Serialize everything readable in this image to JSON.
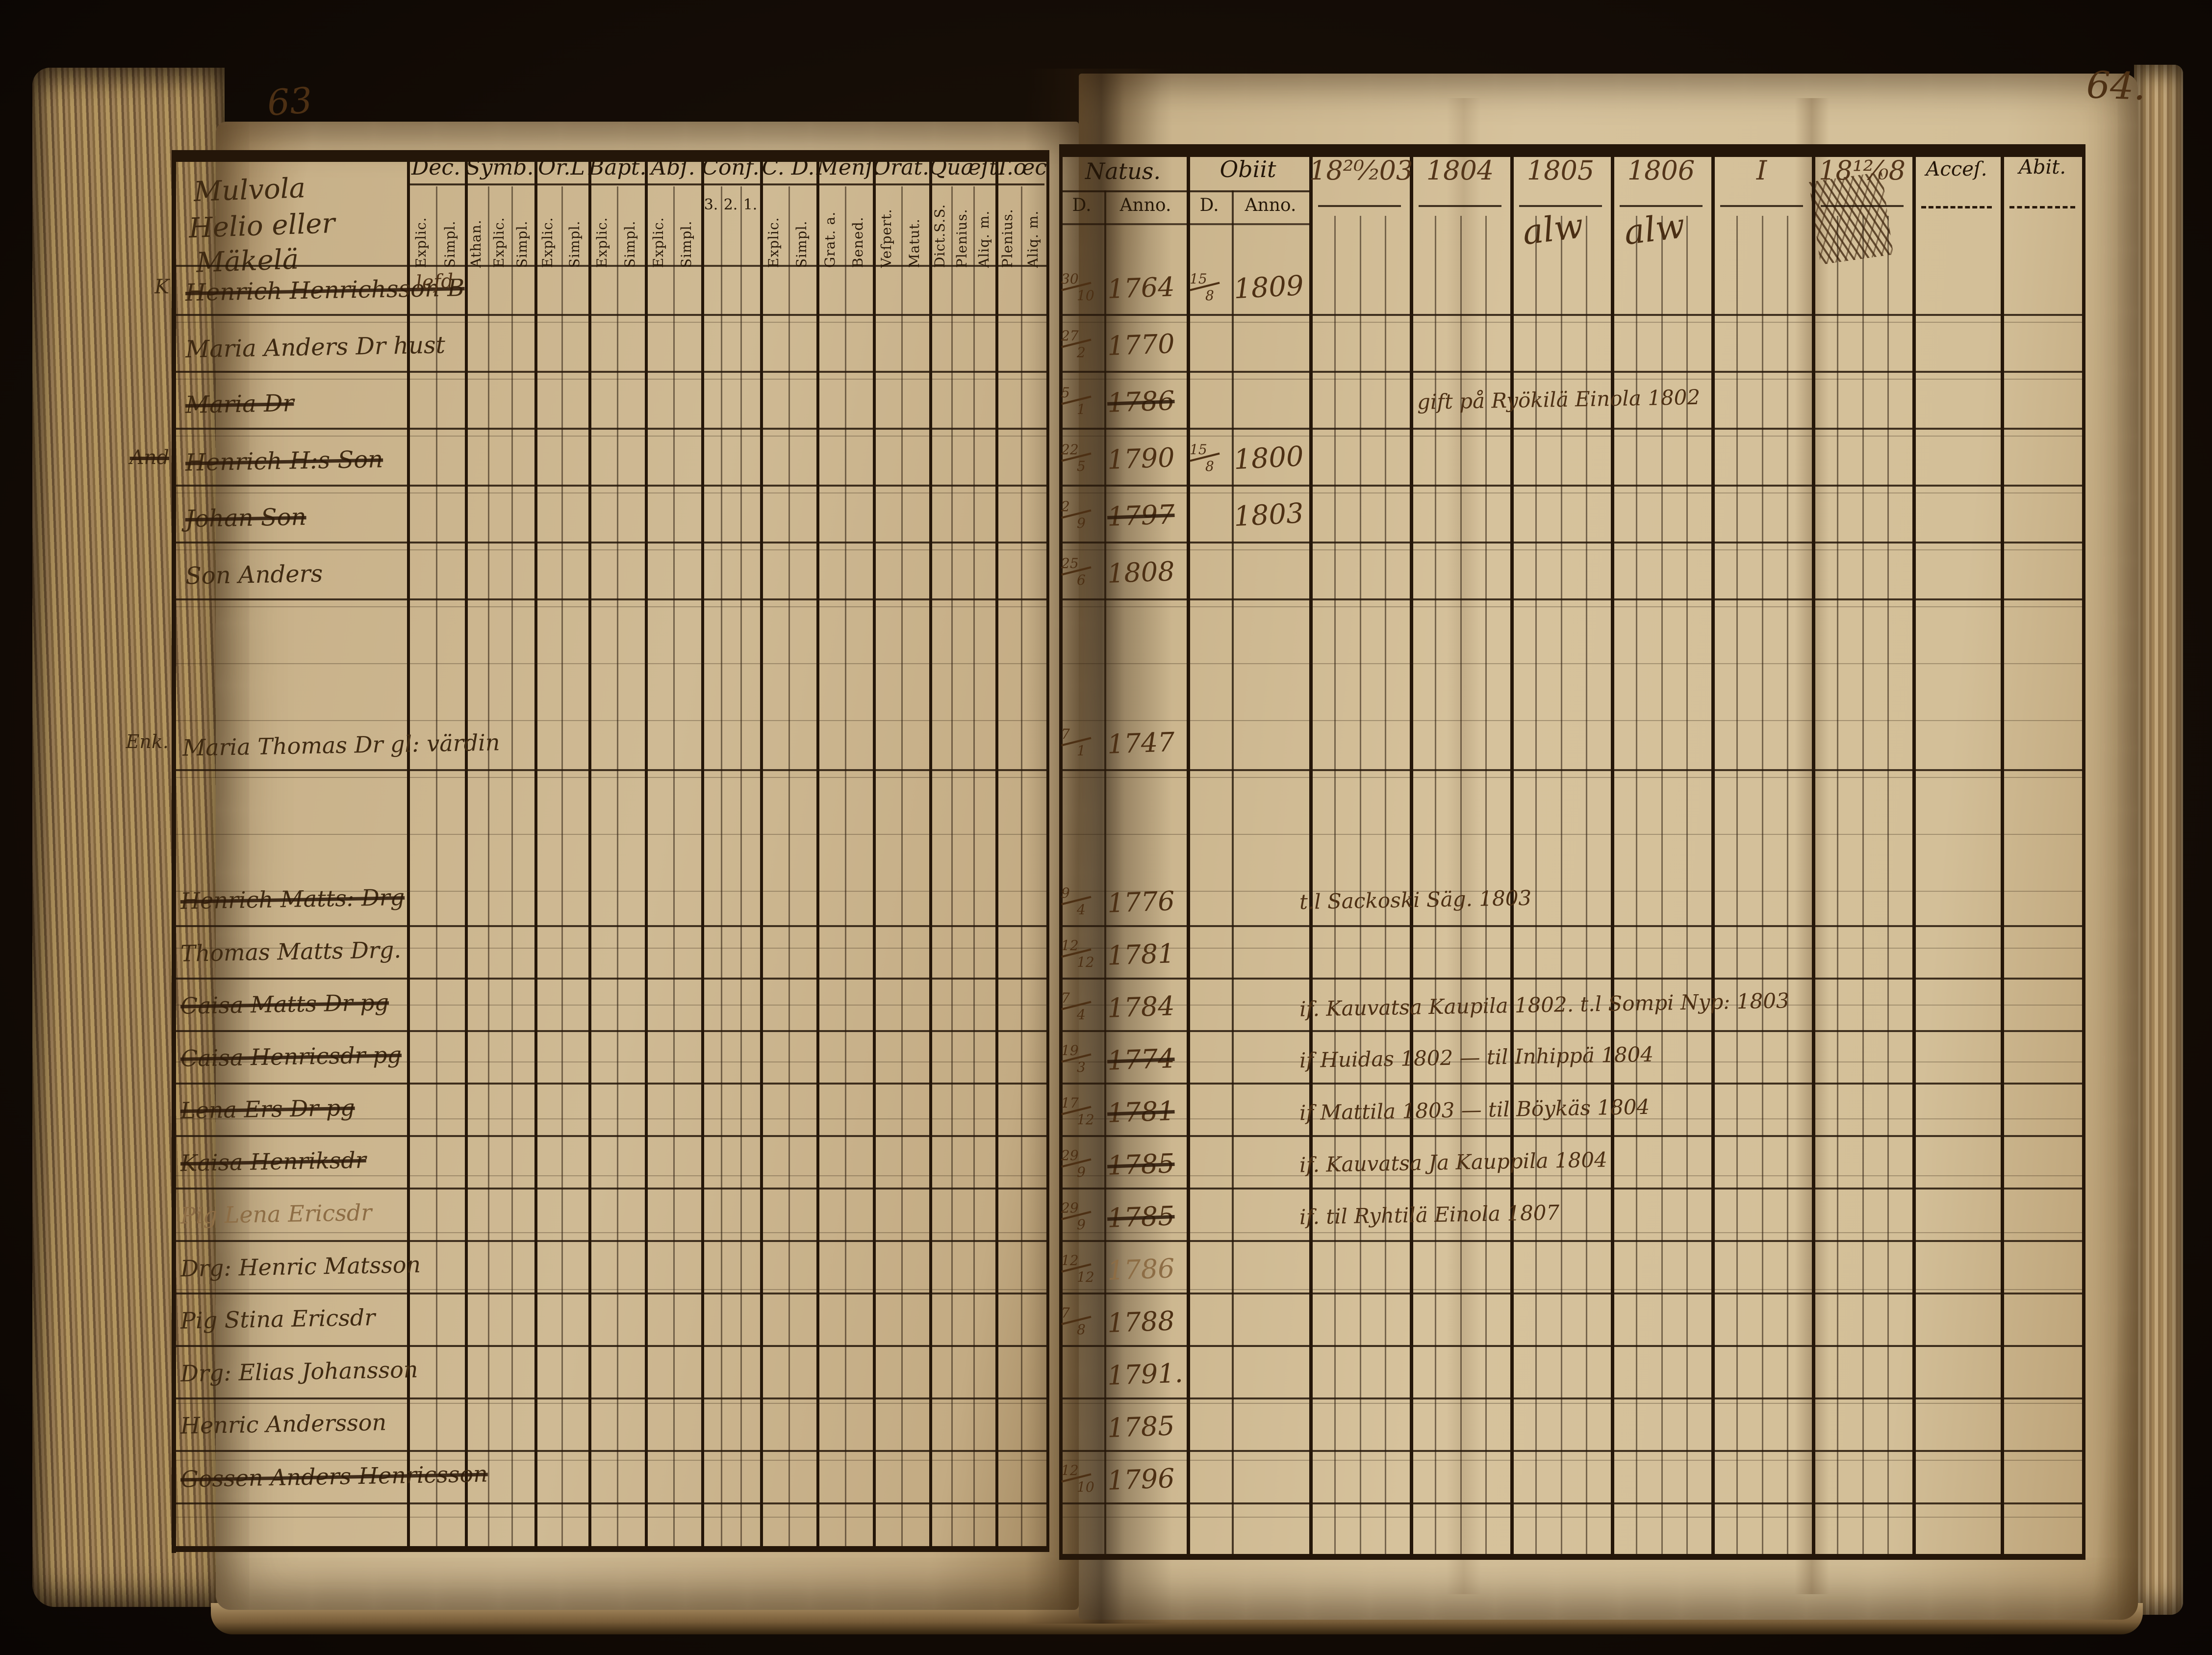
{
  "scene": {
    "left_page_number": "63",
    "right_page_number": "64."
  },
  "left_page": {
    "estate_title": [
      "Mulvola",
      "Helio eller",
      "Mäkelä"
    ],
    "columns": [
      {
        "label": "Dec.",
        "sub": [
          "Explic.",
          "Simpl."
        ]
      },
      {
        "label": "Symb.",
        "sub": [
          "Athan.",
          "Explic.",
          "Simpl."
        ]
      },
      {
        "label": "Or.L",
        "sub": [
          "Explic.",
          "Simpl."
        ]
      },
      {
        "label": "Bapt.",
        "sub": [
          "Explic.",
          "Simpl."
        ]
      },
      {
        "label": "Abſ.",
        "sub": [
          "Explic.",
          "Simpl."
        ]
      },
      {
        "label": "Conf.",
        "sub": [
          "3.",
          "2.",
          "1."
        ]
      },
      {
        "label": "C. D.",
        "sub": [
          "Explic.",
          "Simpl."
        ]
      },
      {
        "label": "Menſ.",
        "sub": [
          "Grat. a.",
          "Bened."
        ]
      },
      {
        "label": "Orat.",
        "sub": [
          "Veſpert.",
          "Matut."
        ]
      },
      {
        "label": "Quæſt.",
        "sub": [
          "Dict.S.S.",
          "Plenius.",
          "Aliq. m."
        ]
      },
      {
        "label": "T.œc",
        "sub": [
          "Plenius.",
          "Aliq. m."
        ]
      }
    ],
    "rows_group1": [
      {
        "margin": "K",
        "margin_struck": false,
        "name": "Henrich Henrichsson B",
        "struck": true,
        "extra": "lefd"
      },
      {
        "margin": "",
        "margin_struck": false,
        "name": "Maria Anders Dr hust",
        "struck": false,
        "extra": ""
      },
      {
        "margin": "",
        "margin_struck": false,
        "name": "Maria Dr",
        "struck": true,
        "extra": ""
      },
      {
        "margin": "And",
        "margin_struck": true,
        "name": "Henrich H:s Son",
        "struck": true,
        "extra": ""
      },
      {
        "margin": "",
        "margin_struck": false,
        "name": "Johan Son",
        "struck": true,
        "extra": ""
      },
      {
        "margin": "",
        "margin_struck": false,
        "name": "Son Anders",
        "struck": false,
        "extra": ""
      }
    ],
    "widow_row": {
      "margin": "Enk.",
      "name": "Maria Thomas Dr gl: värdin",
      "struck": false
    },
    "rows_group2": [
      {
        "name": "Henrich Matts: Drg",
        "struck": true,
        "faded": false
      },
      {
        "name": "Thomas Matts Drg.",
        "struck": false,
        "faded": false
      },
      {
        "name": "Caisa Matts Dr pg",
        "struck": true,
        "faded": false
      },
      {
        "name": "Caisa Henricsdr pg",
        "struck": true,
        "faded": false
      },
      {
        "name": "Lena Ers Dr pg",
        "struck": true,
        "faded": false
      },
      {
        "name": "Kaisa Henriksdr",
        "struck": true,
        "faded": false
      },
      {
        "name": "Pig Lena Ericsdr",
        "struck": false,
        "faded": true
      },
      {
        "name": "Drg: Henric Matsson",
        "struck": false,
        "faded": false
      },
      {
        "name": "Pig Stina Ericsdr",
        "struck": false,
        "faded": false
      },
      {
        "name": "Drg: Elias Johansson",
        "struck": false,
        "faded": false
      },
      {
        "name": "Henric Andersson",
        "struck": false,
        "faded": false
      },
      {
        "name": "Gossen Anders Henricsson",
        "struck": true,
        "faded": false
      }
    ]
  },
  "right_page": {
    "natus_label": "Natus.",
    "obiit_label": "Obiit",
    "d_label": "D.",
    "anno_label": "Anno.",
    "acces_label": "Acceſ.",
    "abit_label": "Abit.",
    "year_columns": [
      "18²⁰⁄₂03",
      "1804",
      "1805",
      "1806",
      "I",
      "18¹²⁄₀8"
    ],
    "scribbles": [
      "alw",
      "alw"
    ],
    "records_group1": [
      {
        "natus_d": "30/10",
        "natus_year": "1764",
        "natus_struck": false,
        "obiit_d": "15/8",
        "obiit_year": "1809",
        "note": ""
      },
      {
        "natus_d": "27/2",
        "natus_year": "1770",
        "natus_struck": false,
        "obiit_d": "",
        "obiit_year": "",
        "note": ""
      },
      {
        "natus_d": "5/1",
        "natus_year": "1786",
        "natus_struck": true,
        "obiit_d": "",
        "obiit_year": "",
        "note": "gift på Ryökilä Einola 1802"
      },
      {
        "natus_d": "22/5",
        "natus_year": "1790",
        "natus_struck": false,
        "obiit_d": "15/8",
        "obiit_year": "1800",
        "note": ""
      },
      {
        "natus_d": "2/9",
        "natus_year": "1797",
        "natus_struck": true,
        "obiit_d": "",
        "obiit_year": "1803",
        "note": ""
      },
      {
        "natus_d": "25/6",
        "natus_year": "1808",
        "natus_struck": false,
        "obiit_d": "",
        "obiit_year": "",
        "note": ""
      }
    ],
    "widow_record": {
      "natus_d": "7/1",
      "natus_year": "1747"
    },
    "records_group2": [
      {
        "natus_d": "9/4",
        "natus_year": "1776",
        "natus_struck": false,
        "faded": false,
        "note": "t.l Sackoski Säg. 1803"
      },
      {
        "natus_d": "12/12",
        "natus_year": "1781",
        "natus_struck": false,
        "faded": false,
        "note": ""
      },
      {
        "natus_d": "7/4",
        "natus_year": "1784",
        "natus_struck": false,
        "faded": false,
        "note": "if. Kauvatsa Kaupila 1802. t.l Sompi Nyp: 1803"
      },
      {
        "natus_d": "19/3",
        "natus_year": "1774",
        "natus_struck": true,
        "faded": false,
        "note": "if Huidas 1802 — til Inhippä 1804"
      },
      {
        "natus_d": "17/12",
        "natus_year": "1781",
        "natus_struck": true,
        "faded": false,
        "note": "if Mattila 1803 — til Böykäs 1804"
      },
      {
        "natus_d": "29/9",
        "natus_year": "1785",
        "natus_struck": true,
        "faded": false,
        "note": "if. Kauvatsa Ja Kauppila 1804"
      },
      {
        "natus_d": "29/9",
        "natus_year": "1785",
        "natus_struck": true,
        "faded": false,
        "note": "if. til Ryhtilä Einola 1807"
      },
      {
        "natus_d": "12/12",
        "natus_year": "1786",
        "natus_struck": false,
        "faded": true,
        "note": ""
      },
      {
        "natus_d": "7/8",
        "natus_year": "1788",
        "natus_struck": false,
        "faded": false,
        "note": ""
      },
      {
        "natus_d": "",
        "natus_year": "1791.",
        "natus_struck": false,
        "faded": false,
        "note": ""
      },
      {
        "natus_d": "",
        "natus_year": "1785",
        "natus_struck": false,
        "faded": false,
        "note": ""
      },
      {
        "natus_d": "12/10",
        "natus_year": "1796",
        "natus_struck": false,
        "faded": false,
        "note": ""
      }
    ]
  }
}
